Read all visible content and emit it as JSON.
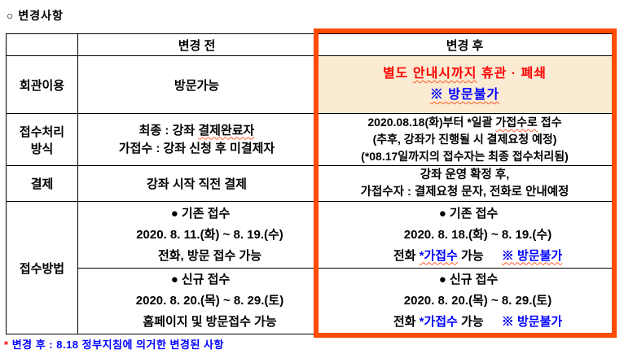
{
  "title": "○ 변경사항",
  "colors": {
    "highlight_border": "#FF4B00",
    "highlight_bg": "#FAEBD2",
    "emphasis_red": "#FF0000",
    "emphasis_blue": "#0000FF"
  },
  "table": {
    "header": {
      "before": "변경 전",
      "after": "변경 후"
    },
    "hall_use": {
      "label": "회관이용",
      "before": "방문가능",
      "after": {
        "closed_pre": "별도",
        "closed_wavy": "안내시까지",
        "closed_post": "휴관 · 폐쇄",
        "no_visit": "※ 방문불가"
      }
    },
    "processing": {
      "label_line1": "접수처리",
      "label_line2": "방식",
      "before": {
        "line1_pre": "최종 : 강좌",
        "line1_wavy": "결제완료자",
        "line2": "가접수 : 강좌 신청 후 미결제자"
      },
      "after": {
        "line1_pre": "2020.08.18(화)부터 *일괄",
        "line1_wavy": "가접수로",
        "line1_post": "접수",
        "line2": "(추후, 강좌가 진행될 시 결제요청 예정)",
        "line3": "(*08.17일까지의 접수자는 최종 접수처리됨)"
      }
    },
    "payment": {
      "label": "결제",
      "before": "강좌 시작 직전 결제",
      "after": {
        "line1": "강좌 운영 확정 후,",
        "line2": "가접수자 : 결제요청 문자, 전화로 안내예정"
      }
    },
    "method": {
      "label": "접수방법",
      "existing": {
        "before": {
          "title": "● 기존 접수",
          "period": "2020.  8.  11.(화)  ~  8.  19.(수)",
          "how": "전화, 방문 접수 가능"
        },
        "after": {
          "title": "● 기존 접수",
          "period": "2020.  8.  18.(화)  ~  8.  19.(수)",
          "phone": "전화",
          "temp": "*가접수",
          "ok": "가능",
          "no_visit": "※ 방문불가"
        }
      },
      "new": {
        "before": {
          "title": "● 신규 접수",
          "period": "2020.  8.  20.(목)  ~  8.  29.(토)",
          "how": "홈페이지 및 방문접수 가능"
        },
        "after": {
          "title": "● 신규 접수",
          "period": "2020.  8.  20.(목)  ~  8.  29.(토)",
          "phone": "전화",
          "temp": "*가접수",
          "ok": "가능",
          "no_visit": "※ 방문불가"
        }
      }
    }
  },
  "footnote": {
    "asterisk": "*",
    "text": "변경 후 : 8.18 정부지침에 의거한 변경된 사항"
  }
}
